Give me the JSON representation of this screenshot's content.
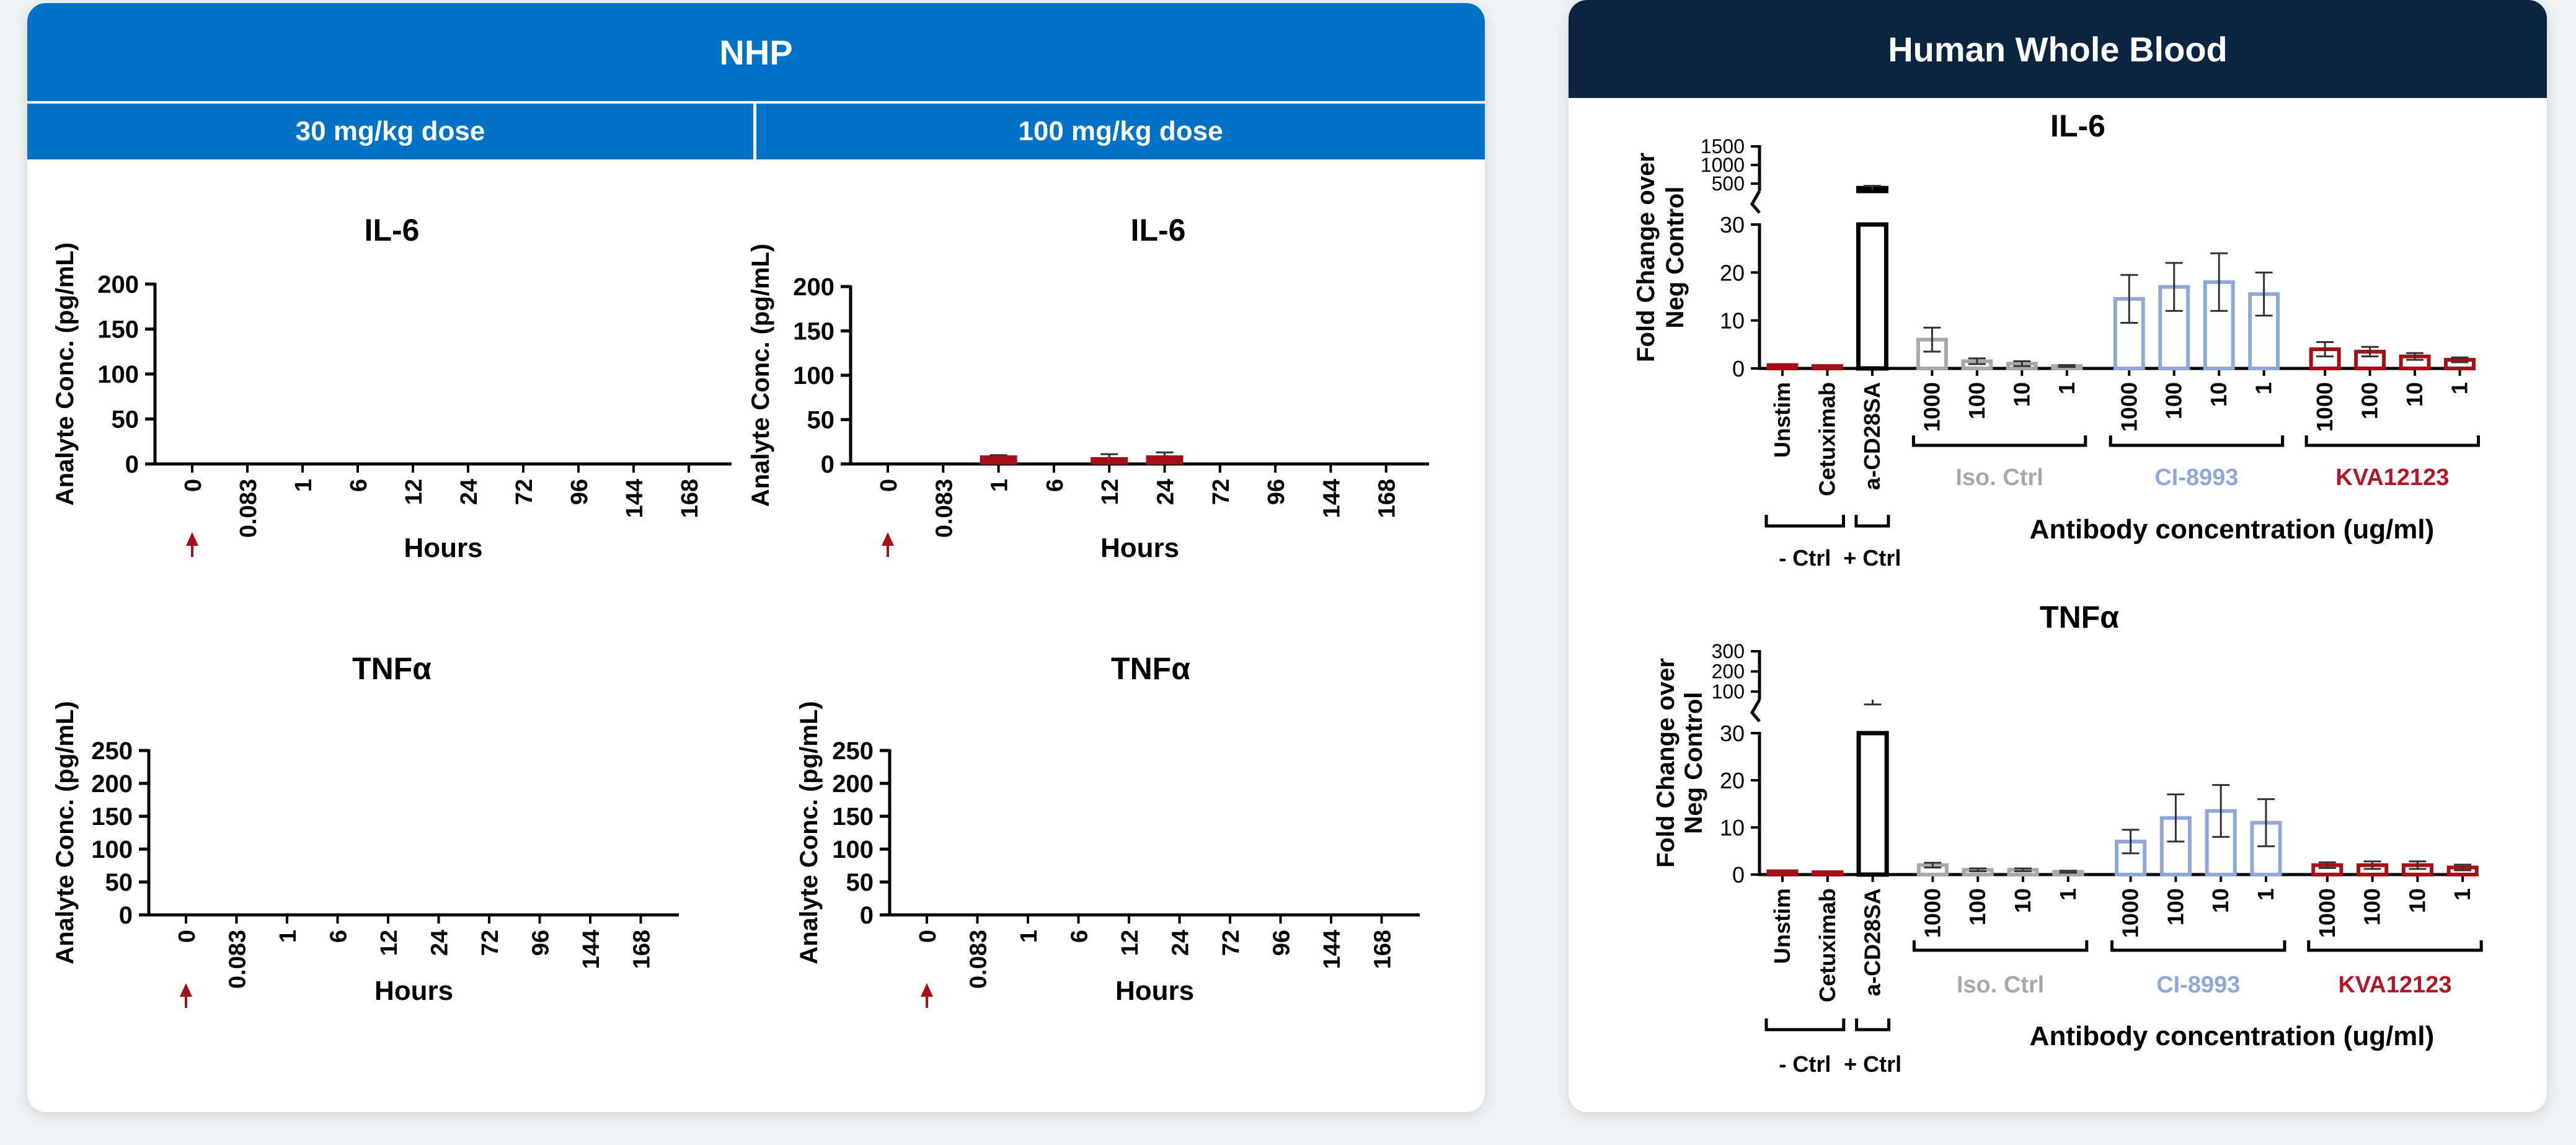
{
  "nhp_panel": {
    "title": "NHP",
    "dose_headers": [
      "30 mg/kg dose",
      "100 mg/kg dose"
    ]
  },
  "hwb_panel": {
    "title": "Human Whole Blood"
  },
  "colors": {
    "nhp_blue": "#0072c6",
    "navy": "#0b2540",
    "dark_red": "#a50f15",
    "gray": "#a8a8a8",
    "light_blue": "#8fa8d8",
    "red_label": "#b0182a"
  },
  "chart_data": [
    {
      "id": "nhp-30-il6",
      "type": "bar",
      "title": "IL-6",
      "xlabel": "Hours",
      "ylabel": "Analyte Conc. (pg/mL)",
      "categories": [
        "0",
        "0.083",
        "1",
        "6",
        "12",
        "24",
        "72",
        "96",
        "144",
        "168"
      ],
      "values": [
        0,
        0,
        0,
        0,
        0,
        0,
        0,
        0,
        0,
        0
      ],
      "errors": [
        0,
        0,
        0,
        0,
        0,
        0,
        0,
        0,
        0,
        0
      ],
      "yticks": [
        0,
        50,
        100,
        150,
        200
      ],
      "ylim": [
        0,
        200
      ],
      "dose_marker": "0"
    },
    {
      "id": "nhp-100-il6",
      "type": "bar",
      "title": "IL-6",
      "xlabel": "Hours",
      "ylabel": "Analyte Conc. (pg/mL)",
      "categories": [
        "0",
        "0.083",
        "1",
        "6",
        "12",
        "24",
        "72",
        "96",
        "144",
        "168"
      ],
      "values": [
        0,
        0,
        9,
        0,
        7,
        9,
        0,
        0,
        0,
        0
      ],
      "errors": [
        0,
        0,
        1,
        0,
        4,
        4,
        0,
        0,
        0,
        0
      ],
      "yticks": [
        0,
        50,
        100,
        150,
        200
      ],
      "ylim": [
        0,
        200
      ],
      "dose_marker": "0"
    },
    {
      "id": "nhp-30-tnf",
      "type": "bar",
      "title": "TNFα",
      "xlabel": "Hours",
      "ylabel": "Analyte Conc. (pg/mL)",
      "categories": [
        "0",
        "0.083",
        "1",
        "6",
        "12",
        "24",
        "72",
        "96",
        "144",
        "168"
      ],
      "values": [
        0,
        0,
        0,
        0,
        0,
        0,
        0,
        0,
        0,
        0
      ],
      "errors": [
        0,
        0,
        0,
        0,
        0,
        0,
        0,
        0,
        0,
        0
      ],
      "yticks": [
        0,
        50,
        100,
        150,
        200,
        250
      ],
      "ylim": [
        0,
        250
      ],
      "dose_marker": "0"
    },
    {
      "id": "nhp-100-tnf",
      "type": "bar",
      "title": "TNFα",
      "xlabel": "Hours",
      "ylabel": "Analyte Conc. (pg/mL)",
      "categories": [
        "0",
        "0.083",
        "1",
        "6",
        "12",
        "24",
        "72",
        "96",
        "144",
        "168"
      ],
      "values": [
        0,
        0,
        0,
        0,
        0,
        0,
        0,
        0,
        0,
        0
      ],
      "errors": [
        0,
        0,
        0,
        0,
        0,
        0,
        0,
        0,
        0,
        0
      ],
      "yticks": [
        0,
        50,
        100,
        150,
        200,
        250
      ],
      "ylim": [
        0,
        250
      ],
      "dose_marker": "0"
    },
    {
      "id": "hwb-il6",
      "type": "bar",
      "title": "IL-6",
      "xlabel": "Antibody concentration (ug/ml)",
      "ylabel": "Fold Change over Neg Control",
      "y_break": {
        "lower_ticks": [
          0,
          10,
          20,
          30
        ],
        "lower_range": [
          0,
          30
        ],
        "upper_ticks": [
          500,
          1000,
          1500
        ],
        "upper_range": [
          300,
          1500
        ]
      },
      "categories": [
        "Unstim",
        "Cetuximab",
        "a-CD28SA",
        "1000",
        "100",
        "10",
        "1",
        "1000",
        "100",
        "10",
        "1",
        "1000",
        "100",
        "10",
        "1"
      ],
      "values": [
        0.7,
        0.5,
        380,
        6,
        1.5,
        1,
        0.5,
        14.5,
        17,
        18,
        15.5,
        4,
        3.5,
        2.5,
        1.8
      ],
      "errors": [
        0,
        0,
        60,
        2.5,
        0.6,
        0.5,
        0.2,
        5,
        5,
        6,
        4.5,
        1.5,
        1,
        0.7,
        0.5
      ],
      "groups": [
        {
          "label": "- Ctrl",
          "members": [
            "Unstim",
            "Cetuximab"
          ],
          "position": "below"
        },
        {
          "label": "+ Ctrl",
          "members": [
            "a-CD28SA"
          ],
          "position": "below"
        },
        {
          "label": "Iso. Ctrl",
          "color": "#a8a8a8",
          "members": [
            3,
            4,
            5,
            6
          ]
        },
        {
          "label": "CI-8993",
          "color": "#8fa8d8",
          "members": [
            7,
            8,
            9,
            10
          ]
        },
        {
          "label": "KVA12123",
          "color": "#b0182a",
          "members": [
            11,
            12,
            13,
            14
          ]
        }
      ]
    },
    {
      "id": "hwb-tnf",
      "type": "bar",
      "title": "TNFα",
      "xlabel": "Antibody concentration (ug/ml)",
      "ylabel": "Fold Change over Neg Control",
      "y_break": {
        "lower_ticks": [
          0,
          10,
          20,
          30
        ],
        "lower_range": [
          0,
          30
        ],
        "upper_ticks": [
          100,
          200,
          300
        ],
        "upper_range": [
          60,
          300
        ]
      },
      "categories": [
        "Unstim",
        "Cetuximab",
        "a-CD28SA",
        "1000",
        "100",
        "10",
        "1",
        "1000",
        "100",
        "10",
        "1",
        "1000",
        "100",
        "10",
        "1"
      ],
      "values": [
        0.7,
        0.5,
        32,
        2,
        1,
        1,
        0.6,
        7,
        12,
        13.5,
        11,
        2,
        2,
        2,
        1.5
      ],
      "errors": [
        0,
        0,
        4,
        0.5,
        0.3,
        0.3,
        0.2,
        2.5,
        5,
        5.5,
        5,
        0.6,
        0.8,
        0.8,
        0.6
      ],
      "groups": [
        {
          "label": "- Ctrl",
          "members": [
            "Unstim",
            "Cetuximab"
          ],
          "position": "below"
        },
        {
          "label": "+ Ctrl",
          "members": [
            "a-CD28SA"
          ],
          "position": "below"
        },
        {
          "label": "Iso. Ctrl",
          "color": "#a8a8a8",
          "members": [
            3,
            4,
            5,
            6
          ]
        },
        {
          "label": "CI-8993",
          "color": "#8fa8d8",
          "members": [
            7,
            8,
            9,
            10
          ]
        },
        {
          "label": "KVA12123",
          "color": "#b0182a",
          "members": [
            11,
            12,
            13,
            14
          ]
        }
      ]
    }
  ]
}
